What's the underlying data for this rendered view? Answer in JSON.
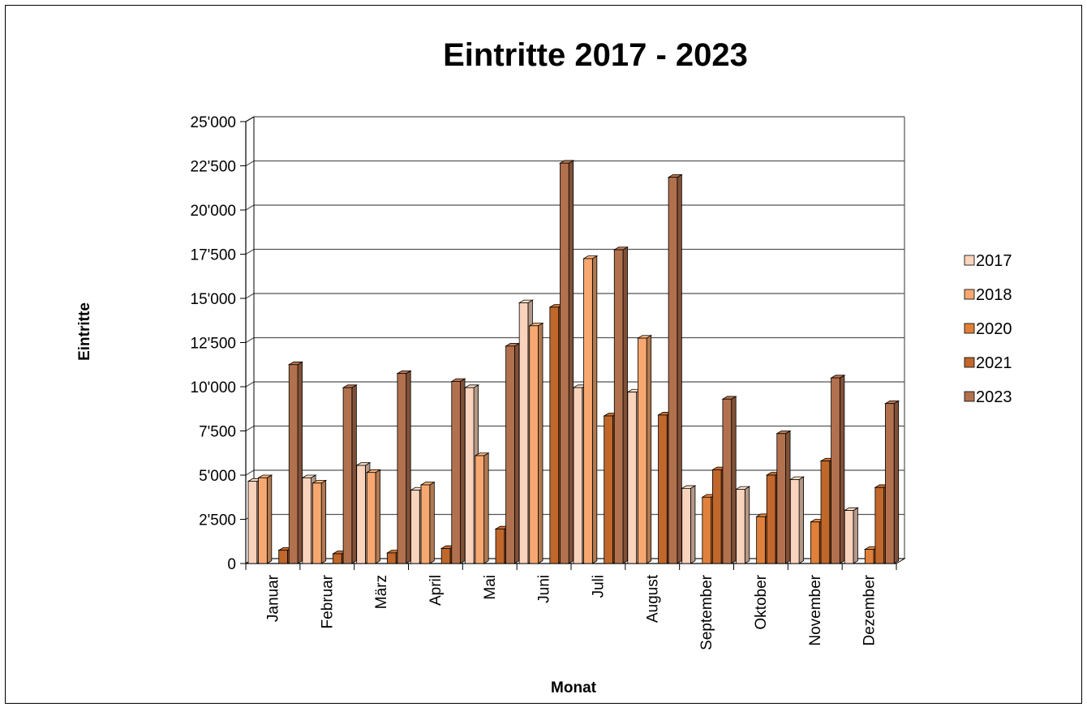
{
  "chart_data": {
    "type": "bar",
    "title": "Eintritte 2017 - 2023",
    "xlabel": "Monat",
    "ylabel": "Eintritte",
    "ylim": [
      0,
      25000
    ],
    "y_ticks": [
      "0",
      "2'500",
      "5'000",
      "7'500",
      "10'000",
      "12'500",
      "15'000",
      "17'500",
      "20'000",
      "22'500",
      "25'000"
    ],
    "y_tick_values": [
      0,
      2500,
      5000,
      7500,
      10000,
      12500,
      15000,
      17500,
      20000,
      22500,
      25000
    ],
    "grid": true,
    "legend_position": "right",
    "categories": [
      "Januar",
      "Februar",
      "März",
      "April",
      "Mai",
      "Juni",
      "Juli",
      "August",
      "September",
      "Oktober",
      "November",
      "Dezember"
    ],
    "series": [
      {
        "name": "2017",
        "color": "#FAD3BC",
        "values": [
          4650,
          4850,
          5550,
          4150,
          9950,
          14750,
          9950,
          9700,
          4250,
          4200,
          4750,
          3000
        ]
      },
      {
        "name": "2018",
        "color": "#F7A871",
        "values": [
          4850,
          4550,
          5150,
          4450,
          6100,
          13450,
          17250,
          12750,
          0,
          0,
          0,
          0
        ]
      },
      {
        "name": "2020",
        "color": "#E0803A",
        "values": [
          0,
          0,
          0,
          0,
          0,
          0,
          0,
          0,
          3750,
          2650,
          2350,
          800
        ]
      },
      {
        "name": "2021",
        "color": "#C0672C",
        "values": [
          750,
          550,
          600,
          850,
          1950,
          14500,
          8350,
          8400,
          5300,
          5000,
          5800,
          4300
        ]
      },
      {
        "name": "2023",
        "color": "#B2714E",
        "values": [
          11250,
          9950,
          10750,
          10300,
          12300,
          22650,
          17750,
          21850,
          9300,
          7350,
          10500,
          9050
        ]
      }
    ]
  }
}
